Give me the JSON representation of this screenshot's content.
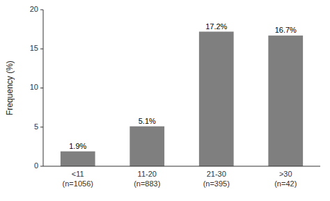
{
  "chart_data": {
    "type": "bar",
    "categories": [
      "<11\n(n=1056)",
      "11-20\n(n=883)",
      "21-30\n(n=395)",
      ">30\n(n=42)"
    ],
    "values": [
      1.9,
      5.1,
      17.2,
      16.7
    ],
    "value_labels": [
      "1.9%",
      "5.1%",
      "17.2%",
      "16.7%"
    ],
    "data_labels": true,
    "color": "#7f7f7f",
    "ylabel": "Frequency (%)",
    "ylim": [
      0,
      20
    ],
    "yticks": [
      0,
      5,
      10,
      15,
      20
    ],
    "grid": false
  }
}
